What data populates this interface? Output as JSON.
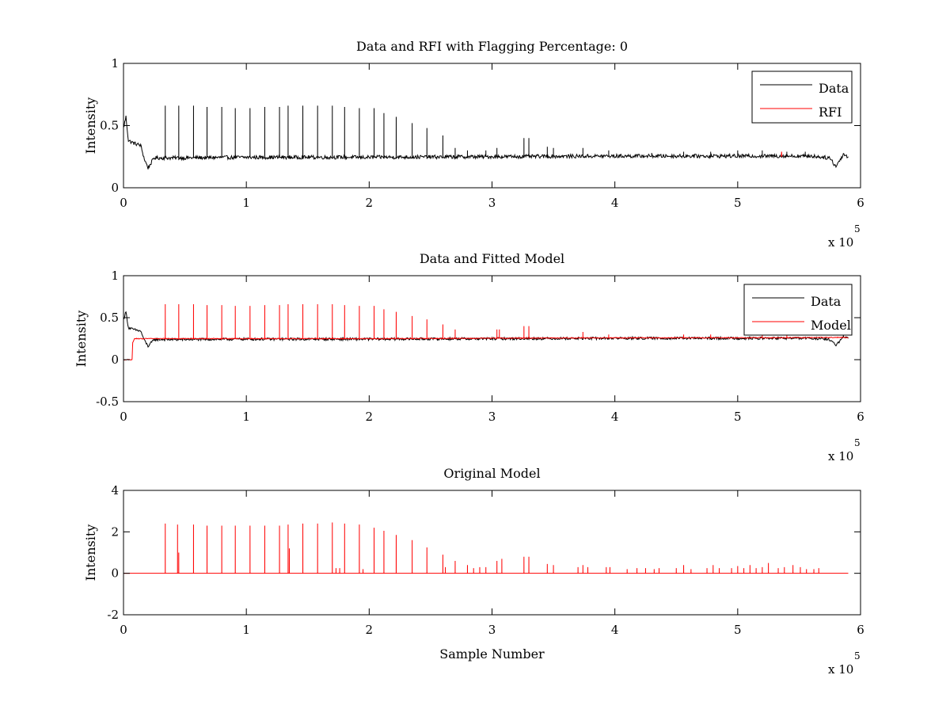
{
  "chart_data": [
    {
      "type": "line",
      "title": "Data and RFI with Flagging Percentage: 0",
      "xlabel": "",
      "ylabel": "Intensity",
      "xlim": [
        0,
        600000
      ],
      "ylim": [
        0,
        1
      ],
      "xticks": [
        0,
        1,
        2,
        3,
        4,
        5,
        6
      ],
      "yticks": [
        0,
        0.5,
        1
      ],
      "x_multiplier_label": "x 10",
      "x_multiplier_exponent": "5",
      "legend": {
        "position": "top-right",
        "entries": [
          "Data",
          "RFI"
        ]
      },
      "grid": false,
      "series": [
        {
          "name": "Data",
          "color": "#000000",
          "baseline": [
            [
              0,
              0.48
            ],
            [
              2000,
              0.57
            ],
            [
              4000,
              0.38
            ],
            [
              8000,
              0.36
            ],
            [
              14000,
              0.34
            ],
            [
              17000,
              0.23
            ],
            [
              20000,
              0.16
            ],
            [
              25000,
              0.24
            ],
            [
              40000,
              0.24
            ],
            [
              100000,
              0.245
            ],
            [
              200000,
              0.245
            ],
            [
              300000,
              0.25
            ],
            [
              400000,
              0.255
            ],
            [
              500000,
              0.255
            ],
            [
              560000,
              0.255
            ],
            [
              575000,
              0.24
            ],
            [
              580000,
              0.17
            ],
            [
              586000,
              0.27
            ],
            [
              590000,
              0.25
            ]
          ],
          "noise": 0.015,
          "spikes": [
            [
              34000,
              0.66
            ],
            [
              45000,
              0.66
            ],
            [
              57000,
              0.66
            ],
            [
              68000,
              0.65
            ],
            [
              80000,
              0.65
            ],
            [
              91000,
              0.64
            ],
            [
              103000,
              0.64
            ],
            [
              115000,
              0.65
            ],
            [
              127000,
              0.65
            ],
            [
              134000,
              0.66
            ],
            [
              146000,
              0.66
            ],
            [
              158000,
              0.66
            ],
            [
              170000,
              0.66
            ],
            [
              180000,
              0.65
            ],
            [
              192000,
              0.64
            ],
            [
              204000,
              0.64
            ],
            [
              212000,
              0.6
            ],
            [
              222000,
              0.57
            ],
            [
              235000,
              0.52
            ],
            [
              247000,
              0.48
            ],
            [
              260000,
              0.42
            ],
            [
              270000,
              0.32
            ],
            [
              280000,
              0.3
            ],
            [
              295000,
              0.3
            ],
            [
              304000,
              0.32
            ],
            [
              326000,
              0.4
            ],
            [
              330000,
              0.4
            ],
            [
              345000,
              0.33
            ],
            [
              350000,
              0.32
            ],
            [
              374000,
              0.32
            ],
            [
              395000,
              0.3
            ],
            [
              430000,
              0.28
            ],
            [
              456000,
              0.29
            ],
            [
              478000,
              0.29
            ],
            [
              500000,
              0.3
            ],
            [
              520000,
              0.3
            ],
            [
              540000,
              0.29
            ],
            [
              555000,
              0.29
            ]
          ]
        },
        {
          "name": "RFI",
          "color": "#ff0000",
          "points": [
            [
              535500,
              0.25
            ],
            [
              535700,
              0.29
            ],
            [
              536000,
              0.25
            ]
          ]
        }
      ]
    },
    {
      "type": "line",
      "title": "Data and Fitted Model",
      "xlabel": "",
      "ylabel": "Intensity",
      "xlim": [
        0,
        600000
      ],
      "ylim": [
        -0.5,
        1
      ],
      "xticks": [
        0,
        1,
        2,
        3,
        4,
        5,
        6
      ],
      "yticks": [
        -0.5,
        0,
        0.5,
        1
      ],
      "x_multiplier_label": "x 10",
      "x_multiplier_exponent": "5",
      "legend": {
        "position": "top-right",
        "entries": [
          "Data",
          "Model"
        ]
      },
      "grid": false,
      "series": [
        {
          "name": "Data",
          "color": "#000000",
          "baseline": [
            [
              0,
              0.48
            ],
            [
              2000,
              0.57
            ],
            [
              4000,
              0.38
            ],
            [
              8000,
              0.36
            ],
            [
              14000,
              0.34
            ],
            [
              17000,
              0.23
            ],
            [
              20000,
              0.16
            ],
            [
              25000,
              0.24
            ],
            [
              40000,
              0.24
            ],
            [
              100000,
              0.245
            ],
            [
              200000,
              0.245
            ],
            [
              300000,
              0.25
            ],
            [
              400000,
              0.255
            ],
            [
              500000,
              0.255
            ],
            [
              560000,
              0.255
            ],
            [
              575000,
              0.24
            ],
            [
              580000,
              0.17
            ],
            [
              586000,
              0.27
            ],
            [
              590000,
              0.25
            ]
          ],
          "noise": 0.015
        },
        {
          "name": "Model",
          "color": "#ff0000",
          "baseline": [
            [
              0,
              0
            ],
            [
              7000,
              0
            ],
            [
              7500,
              0.2
            ],
            [
              9000,
              0.25
            ],
            [
              20000,
              0.25
            ],
            [
              100000,
              0.25
            ],
            [
              200000,
              0.25
            ],
            [
              300000,
              0.255
            ],
            [
              400000,
              0.26
            ],
            [
              500000,
              0.26
            ],
            [
              590000,
              0.265
            ]
          ],
          "noise": 0.005,
          "spikes": [
            [
              34000,
              0.66
            ],
            [
              45000,
              0.66
            ],
            [
              57000,
              0.66
            ],
            [
              68000,
              0.65
            ],
            [
              80000,
              0.65
            ],
            [
              91000,
              0.64
            ],
            [
              103000,
              0.64
            ],
            [
              115000,
              0.65
            ],
            [
              127000,
              0.65
            ],
            [
              134000,
              0.66
            ],
            [
              146000,
              0.66
            ],
            [
              158000,
              0.66
            ],
            [
              170000,
              0.66
            ],
            [
              180000,
              0.65
            ],
            [
              192000,
              0.64
            ],
            [
              204000,
              0.64
            ],
            [
              212000,
              0.6
            ],
            [
              222000,
              0.57
            ],
            [
              235000,
              0.52
            ],
            [
              247000,
              0.48
            ],
            [
              260000,
              0.42
            ],
            [
              270000,
              0.36
            ],
            [
              304000,
              0.36
            ],
            [
              306000,
              0.36
            ],
            [
              326000,
              0.4
            ],
            [
              330000,
              0.4
            ],
            [
              374000,
              0.33
            ],
            [
              395000,
              0.3
            ],
            [
              456000,
              0.3
            ],
            [
              478000,
              0.3
            ],
            [
              520000,
              0.3
            ],
            [
              540000,
              0.3
            ]
          ]
        }
      ]
    },
    {
      "type": "line",
      "title": "Original Model",
      "xlabel": "Sample Number",
      "ylabel": "Intensity",
      "xlim": [
        0,
        600000
      ],
      "ylim": [
        -2,
        4
      ],
      "xticks": [
        0,
        1,
        2,
        3,
        4,
        5,
        6
      ],
      "yticks": [
        -2,
        0,
        2,
        4
      ],
      "x_multiplier_label": "x 10",
      "x_multiplier_exponent": "5",
      "grid": false,
      "series": [
        {
          "color": "#ff0000",
          "baseline": [
            [
              0,
              0
            ],
            [
              590000,
              0
            ]
          ],
          "noise": 0,
          "spikes": [
            [
              34000,
              2.4
            ],
            [
              44000,
              2.35
            ],
            [
              45000,
              1.0
            ],
            [
              57000,
              2.35
            ],
            [
              68000,
              2.3
            ],
            [
              80000,
              2.3
            ],
            [
              91000,
              2.3
            ],
            [
              103000,
              2.3
            ],
            [
              115000,
              2.3
            ],
            [
              127000,
              2.3
            ],
            [
              134000,
              2.35
            ],
            [
              135000,
              1.2
            ],
            [
              146000,
              2.4
            ],
            [
              158000,
              2.4
            ],
            [
              170000,
              2.45
            ],
            [
              173000,
              0.25
            ],
            [
              176000,
              0.25
            ],
            [
              180000,
              2.4
            ],
            [
              192000,
              2.35
            ],
            [
              195000,
              0.2
            ],
            [
              204000,
              2.2
            ],
            [
              212000,
              2.05
            ],
            [
              222000,
              1.85
            ],
            [
              235000,
              1.6
            ],
            [
              247000,
              1.25
            ],
            [
              260000,
              0.9
            ],
            [
              262000,
              0.3
            ],
            [
              270000,
              0.6
            ],
            [
              280000,
              0.4
            ],
            [
              285000,
              0.25
            ],
            [
              290000,
              0.3
            ],
            [
              295000,
              0.3
            ],
            [
              304000,
              0.6
            ],
            [
              308000,
              0.7
            ],
            [
              326000,
              0.8
            ],
            [
              330000,
              0.8
            ],
            [
              345000,
              0.45
            ],
            [
              350000,
              0.4
            ],
            [
              370000,
              0.3
            ],
            [
              374000,
              0.4
            ],
            [
              378000,
              0.3
            ],
            [
              393000,
              0.3
            ],
            [
              396000,
              0.3
            ],
            [
              410000,
              0.2
            ],
            [
              418000,
              0.25
            ],
            [
              425000,
              0.25
            ],
            [
              432000,
              0.2
            ],
            [
              436000,
              0.25
            ],
            [
              450000,
              0.25
            ],
            [
              456000,
              0.4
            ],
            [
              462000,
              0.2
            ],
            [
              475000,
              0.25
            ],
            [
              480000,
              0.4
            ],
            [
              485000,
              0.25
            ],
            [
              495000,
              0.25
            ],
            [
              500000,
              0.35
            ],
            [
              505000,
              0.25
            ],
            [
              510000,
              0.4
            ],
            [
              515000,
              0.25
            ],
            [
              520000,
              0.3
            ],
            [
              525000,
              0.5
            ],
            [
              533000,
              0.25
            ],
            [
              538000,
              0.3
            ],
            [
              545000,
              0.4
            ],
            [
              551000,
              0.3
            ],
            [
              556000,
              0.2
            ],
            [
              562000,
              0.2
            ],
            [
              566000,
              0.25
            ]
          ]
        }
      ]
    }
  ]
}
